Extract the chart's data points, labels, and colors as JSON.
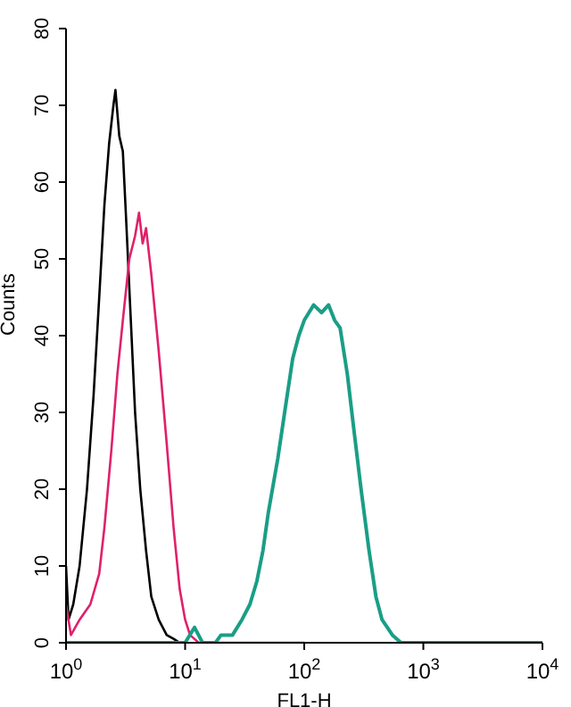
{
  "chart_data": {
    "type": "line",
    "xlabel": "FL1-H",
    "ylabel": "Counts",
    "log": "x",
    "grid": false,
    "legend": false,
    "marker": "none",
    "line_style": "solid",
    "xlim": [
      1,
      10000
    ],
    "ylim": [
      0,
      80
    ],
    "xticks": [
      {
        "value": 1,
        "label": "10$^{0}$"
      },
      {
        "value": 10,
        "label": "10$^{1}$"
      },
      {
        "value": 100,
        "label": "10$^{2}$"
      },
      {
        "value": 1000,
        "label": "10$^{3}$"
      },
      {
        "value": 10000,
        "label": "10$^{4}$"
      }
    ],
    "yticks": [
      0,
      10,
      20,
      30,
      40,
      50,
      60,
      70,
      80
    ],
    "series": [
      {
        "color": "#000000",
        "x": [
          1,
          1.05,
          1.15,
          1.3,
          1.5,
          1.7,
          1.9,
          2.1,
          2.3,
          2.5,
          2.6,
          2.8,
          3.0,
          3.2,
          3.5,
          3.8,
          4.2,
          4.7,
          5.2,
          6,
          7,
          8,
          9
        ],
        "values": [
          10,
          3,
          5,
          10,
          20,
          32,
          45,
          57,
          65,
          70,
          72,
          66,
          64,
          55,
          42,
          30,
          20,
          12,
          6,
          3,
          1,
          0.5,
          0
        ]
      },
      {
        "color": "#e0206a",
        "x": [
          1,
          1.1,
          1.3,
          1.6,
          1.9,
          2.1,
          2.4,
          2.7,
          3.0,
          3.4,
          3.8,
          4.1,
          4.4,
          4.7,
          5.2,
          6,
          7,
          8,
          9,
          10,
          11,
          13,
          100
        ],
        "values": [
          5,
          1,
          3,
          5,
          9,
          15,
          25,
          35,
          42,
          50,
          53,
          56,
          52,
          54,
          48,
          38,
          26,
          15,
          7,
          3,
          1,
          0,
          0
        ]
      },
      {
        "color": "#1a9e86",
        "x": [
          1,
          10,
          12,
          14,
          18,
          20,
          25,
          30,
          35,
          40,
          45,
          50,
          60,
          70,
          80,
          90,
          100,
          120,
          140,
          160,
          180,
          200,
          230,
          260,
          300,
          350,
          400,
          450,
          550,
          650,
          10000
        ],
        "values": [
          0,
          0,
          2,
          0,
          0,
          1,
          1,
          3,
          5,
          8,
          12,
          17,
          24,
          31,
          37,
          40,
          42,
          44,
          43,
          44,
          42,
          41,
          35,
          28,
          20,
          12,
          6,
          3,
          1,
          0,
          0
        ]
      }
    ]
  }
}
